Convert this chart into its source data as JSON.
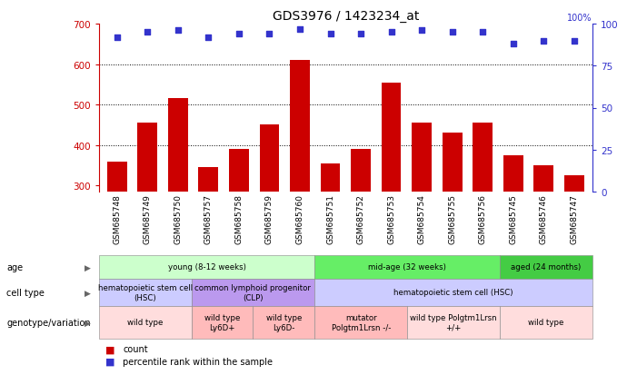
{
  "title": "GDS3976 / 1423234_at",
  "samples": [
    "GSM685748",
    "GSM685749",
    "GSM685750",
    "GSM685757",
    "GSM685758",
    "GSM685759",
    "GSM685760",
    "GSM685751",
    "GSM685752",
    "GSM685753",
    "GSM685754",
    "GSM685755",
    "GSM685756",
    "GSM685745",
    "GSM685746",
    "GSM685747"
  ],
  "counts": [
    360,
    455,
    515,
    345,
    390,
    450,
    610,
    355,
    390,
    555,
    455,
    430,
    455,
    375,
    350,
    325
  ],
  "percentiles": [
    92,
    95,
    96,
    92,
    94,
    94,
    97,
    94,
    94,
    95,
    96,
    95,
    95,
    88,
    90,
    90
  ],
  "ylim_left": [
    285,
    700
  ],
  "ylim_right": [
    0,
    100
  ],
  "yticks_left": [
    300,
    400,
    500,
    600,
    700
  ],
  "yticks_right": [
    0,
    25,
    50,
    75,
    100
  ],
  "grid_vals": [
    400,
    500,
    600
  ],
  "bar_color": "#cc0000",
  "dot_color": "#3333cc",
  "age_groups": [
    {
      "label": "young (8-12 weeks)",
      "start": 0,
      "end": 6,
      "color": "#ccffcc"
    },
    {
      "label": "mid-age (32 weeks)",
      "start": 7,
      "end": 12,
      "color": "#66ee66"
    },
    {
      "label": "aged (24 months)",
      "start": 13,
      "end": 15,
      "color": "#44cc44"
    }
  ],
  "cell_type_groups": [
    {
      "label": "hematopoietic stem cell\n(HSC)",
      "start": 0,
      "end": 2,
      "color": "#ccccff"
    },
    {
      "label": "common lymphoid progenitor\n(CLP)",
      "start": 3,
      "end": 6,
      "color": "#bb99ee"
    },
    {
      "label": "hematopoietic stem cell (HSC)",
      "start": 7,
      "end": 15,
      "color": "#ccccff"
    }
  ],
  "genotype_groups": [
    {
      "label": "wild type",
      "start": 0,
      "end": 2,
      "color": "#ffdddd"
    },
    {
      "label": "wild type\nLy6D+",
      "start": 3,
      "end": 4,
      "color": "#ffbbbb"
    },
    {
      "label": "wild type\nLy6D-",
      "start": 5,
      "end": 6,
      "color": "#ffbbbb"
    },
    {
      "label": "mutator\nPolgtm1Lrsn -/-",
      "start": 7,
      "end": 9,
      "color": "#ffbbbb"
    },
    {
      "label": "wild type Polgtm1Lrsn\n+/+",
      "start": 10,
      "end": 12,
      "color": "#ffdddd"
    },
    {
      "label": "wild type",
      "start": 13,
      "end": 15,
      "color": "#ffdddd"
    }
  ],
  "row_labels": [
    "age",
    "cell type",
    "genotype/variation"
  ],
  "legend_items": [
    {
      "color": "#cc0000",
      "label": "count"
    },
    {
      "color": "#3333cc",
      "label": "percentile rank within the sample"
    }
  ],
  "gray_band_color": "#d8d8d8",
  "sample_label_fontsize": 6.5,
  "bar_width": 0.65
}
